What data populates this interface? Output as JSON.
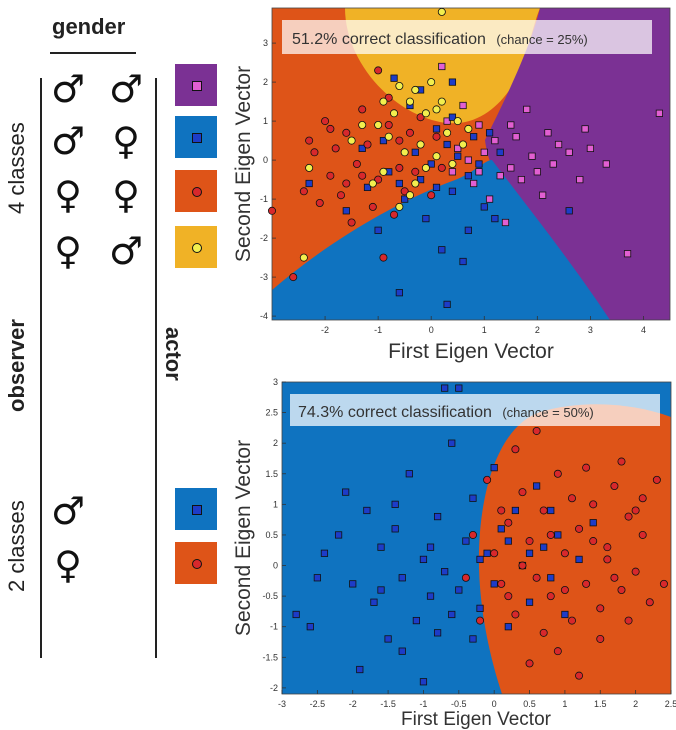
{
  "legend": {
    "gender_title": "gender",
    "four_classes_label": "4 classes",
    "two_classes_label": "2 classes",
    "observer_label": "observer",
    "actor_label": "actor",
    "four_class_rows": [
      {
        "observer": "♂",
        "actor": "♂",
        "class_color": "#7b3194",
        "marker": "square",
        "marker_color": "#e25fd2"
      },
      {
        "observer": "♂",
        "actor": "♀",
        "class_color": "#0f73c0",
        "marker": "square",
        "marker_color": "#1d3cc8"
      },
      {
        "observer": "♀",
        "actor": "♀",
        "class_color": "#de5418",
        "marker": "circle",
        "marker_color": "#d8282c"
      },
      {
        "observer": "♀",
        "actor": "♂",
        "class_color": "#f0b226",
        "marker": "circle",
        "marker_color": "#f3ef4e"
      }
    ],
    "two_class_rows": [
      {
        "observer": "♂",
        "class_color": "#0f73c0",
        "marker": "square",
        "marker_color": "#1d3cc8"
      },
      {
        "observer": "♀",
        "class_color": "#de5418",
        "marker": "circle",
        "marker_color": "#d8282c"
      }
    ]
  },
  "chart_data": [
    {
      "type": "scatter",
      "annotation_main": "51.2% correct classification",
      "annotation_sub": "(chance = 25%)",
      "xlabel": "First Eigen Vector",
      "ylabel": "Second Eigen Vector",
      "xlim": [
        -3,
        4.5
      ],
      "ylim": [
        -4.1,
        3.9
      ],
      "xticks": [
        -2,
        -1,
        0,
        1,
        2,
        3,
        4
      ],
      "yticks": [
        3,
        2,
        1,
        0,
        -1,
        -2,
        -3,
        -4
      ],
      "region_colors": {
        "purple": "#7b3194",
        "blue": "#0f73c0",
        "orange": "#de5418",
        "yellow": "#f0b226"
      },
      "series": [
        {
          "marker": "square",
          "color": "#e25fd2",
          "points": [
            [
              3.7,
              -2.4
            ],
            [
              4.3,
              1.2
            ],
            [
              2.4,
              0.4
            ],
            [
              2.8,
              -0.5
            ],
            [
              1.5,
              -0.2
            ],
            [
              1.9,
              0.1
            ],
            [
              1.2,
              0.5
            ],
            [
              2.1,
              -0.9
            ],
            [
              0.6,
              1.4
            ],
            [
              0.9,
              0.9
            ],
            [
              1.6,
              0.6
            ],
            [
              2.0,
              -0.3
            ],
            [
              1.4,
              -1.6
            ],
            [
              3.3,
              -0.1
            ],
            [
              2.6,
              0.2
            ],
            [
              0.4,
              -0.3
            ],
            [
              0.8,
              -0.6
            ],
            [
              1.1,
              -1.0
            ],
            [
              1.8,
              1.3
            ],
            [
              0.2,
              2.4
            ],
            [
              2.3,
              -0.1
            ],
            [
              1.0,
              0.2
            ],
            [
              0.5,
              0.3
            ],
            [
              1.7,
              -0.5
            ],
            [
              2.9,
              0.8
            ],
            [
              0.3,
              1.0
            ],
            [
              1.3,
              -0.4
            ],
            [
              0.7,
              0.0
            ],
            [
              2.2,
              0.7
            ],
            [
              1.5,
              0.9
            ],
            [
              0.9,
              -0.3
            ],
            [
              3.0,
              0.3
            ]
          ]
        },
        {
          "marker": "square",
          "color": "#1d3cc8",
          "points": [
            [
              -2.3,
              -0.6
            ],
            [
              -0.6,
              -3.4
            ],
            [
              0.3,
              -3.7
            ],
            [
              0.7,
              -1.8
            ],
            [
              -0.1,
              -1.5
            ],
            [
              0.4,
              -0.8
            ],
            [
              -0.8,
              -0.3
            ],
            [
              0.1,
              0.8
            ],
            [
              0.5,
              0.1
            ],
            [
              -0.2,
              -0.5
            ],
            [
              1.0,
              -1.2
            ],
            [
              -1.3,
              0.3
            ],
            [
              -0.4,
              1.4
            ],
            [
              0.8,
              0.6
            ],
            [
              -1.0,
              -1.8
            ],
            [
              0.2,
              -2.3
            ],
            [
              -0.5,
              -1.0
            ],
            [
              1.3,
              0.2
            ],
            [
              0.6,
              -2.6
            ],
            [
              -1.6,
              -1.3
            ],
            [
              -0.3,
              0.2
            ],
            [
              0.9,
              -0.1
            ],
            [
              -0.9,
              0.5
            ],
            [
              0.1,
              -0.7
            ],
            [
              1.1,
              0.7
            ],
            [
              -0.6,
              -0.6
            ],
            [
              0.4,
              1.1
            ],
            [
              -1.2,
              -0.7
            ],
            [
              0.3,
              0.4
            ],
            [
              0.0,
              -0.1
            ],
            [
              -0.2,
              1.8
            ],
            [
              0.7,
              -0.4
            ],
            [
              -0.7,
              2.1
            ],
            [
              2.6,
              -1.3
            ],
            [
              0.4,
              2.0
            ],
            [
              1.2,
              -1.5
            ]
          ]
        },
        {
          "marker": "circle",
          "color": "#d8282c",
          "points": [
            [
              -2.2,
              0.2
            ],
            [
              -1.9,
              -0.4
            ],
            [
              -1.6,
              0.7
            ],
            [
              -2.0,
              1.0
            ],
            [
              -1.4,
              -0.1
            ],
            [
              -1.2,
              0.4
            ],
            [
              -1.7,
              -0.9
            ],
            [
              -1.0,
              -0.5
            ],
            [
              -0.8,
              0.9
            ],
            [
              -1.3,
              1.3
            ],
            [
              -0.5,
              -0.8
            ],
            [
              -0.6,
              0.5
            ],
            [
              -1.8,
              0.3
            ],
            [
              -2.4,
              -0.8
            ],
            [
              -1.1,
              -1.2
            ],
            [
              -0.3,
              -0.3
            ],
            [
              0.1,
              0.6
            ],
            [
              -0.2,
              1.1
            ],
            [
              -1.5,
              -1.6
            ],
            [
              -0.9,
              -2.5
            ],
            [
              -2.6,
              -3.0
            ],
            [
              -1.0,
              2.3
            ],
            [
              -2.1,
              -1.1
            ],
            [
              0.2,
              -0.2
            ],
            [
              -0.4,
              0.7
            ],
            [
              -0.7,
              -1.4
            ],
            [
              -1.9,
              0.8
            ],
            [
              -1.3,
              -0.4
            ],
            [
              -0.6,
              -0.2
            ],
            [
              0.0,
              -0.9
            ],
            [
              -1.6,
              -0.6
            ],
            [
              -2.3,
              0.5
            ],
            [
              -3.0,
              -1.3
            ],
            [
              -0.8,
              1.6
            ]
          ]
        },
        {
          "marker": "circle",
          "color": "#f3ef4e",
          "points": [
            [
              -1.0,
              0.9
            ],
            [
              -0.7,
              1.2
            ],
            [
              -0.4,
              1.5
            ],
            [
              -0.1,
              1.2
            ],
            [
              0.2,
              1.5
            ],
            [
              0.5,
              1.0
            ],
            [
              -0.8,
              0.6
            ],
            [
              -0.5,
              0.2
            ],
            [
              -0.2,
              0.4
            ],
            [
              0.1,
              0.1
            ],
            [
              0.3,
              0.7
            ],
            [
              -1.3,
              0.9
            ],
            [
              -0.9,
              -0.3
            ],
            [
              -0.3,
              -0.6
            ],
            [
              0.0,
              2.0
            ],
            [
              0.2,
              3.8
            ],
            [
              -0.6,
              1.9
            ],
            [
              0.6,
              0.4
            ],
            [
              -1.5,
              0.5
            ],
            [
              0.4,
              -0.1
            ],
            [
              -0.1,
              -0.2
            ],
            [
              -2.4,
              -2.5
            ],
            [
              -2.3,
              -0.2
            ],
            [
              -0.4,
              -0.9
            ],
            [
              -0.6,
              -1.2
            ],
            [
              0.7,
              0.8
            ],
            [
              -1.1,
              -0.6
            ],
            [
              -0.3,
              1.8
            ],
            [
              -0.9,
              1.5
            ],
            [
              0.1,
              1.3
            ]
          ]
        }
      ]
    },
    {
      "type": "scatter",
      "annotation_main": "74.3% correct classification",
      "annotation_sub": "(chance = 50%)",
      "xlabel": "First Eigen Vector",
      "ylabel": "Second Eigen Vector",
      "xlim": [
        -3,
        2.5
      ],
      "ylim": [
        -2.1,
        3
      ],
      "xticks": [
        -3,
        -2.5,
        -2,
        -1.5,
        -1,
        -0.5,
        0,
        0.5,
        1,
        1.5,
        2,
        2.5
      ],
      "xtick_labels": [
        "-3",
        "-2.5",
        "-2",
        "-1.5",
        "-1",
        "-0.5",
        "0",
        "0.5",
        "1",
        "1.5",
        "2",
        "2.5"
      ],
      "yticks": [
        3,
        2.5,
        2,
        1.5,
        1,
        0.5,
        0,
        -0.5,
        -1,
        -1.5,
        -2
      ],
      "ytick_labels": [
        "3",
        "2.5",
        "2",
        "1.5",
        "1",
        "0.5",
        "0",
        "-0.5",
        "-1",
        "-1.5",
        "-2"
      ],
      "region_colors": {
        "blue": "#0f73c0",
        "orange": "#de5418"
      },
      "series": [
        {
          "marker": "square",
          "color": "#1d3cc8",
          "points": [
            [
              -2.8,
              -0.8
            ],
            [
              -2.6,
              -1.0
            ],
            [
              -2.4,
              0.2
            ],
            [
              -2.2,
              0.5
            ],
            [
              -2.0,
              -0.3
            ],
            [
              -1.8,
              0.9
            ],
            [
              -1.7,
              -0.6
            ],
            [
              -1.6,
              0.3
            ],
            [
              -1.5,
              -1.2
            ],
            [
              -1.4,
              0.6
            ],
            [
              -1.3,
              -0.2
            ],
            [
              -1.2,
              1.5
            ],
            [
              -1.1,
              -0.9
            ],
            [
              -1.0,
              0.1
            ],
            [
              -0.9,
              -0.5
            ],
            [
              -0.8,
              0.8
            ],
            [
              -0.7,
              -0.1
            ],
            [
              -0.6,
              2.0
            ],
            [
              -0.5,
              -0.4
            ],
            [
              -0.4,
              0.4
            ],
            [
              -0.3,
              1.1
            ],
            [
              -0.2,
              -0.7
            ],
            [
              -0.1,
              0.2
            ],
            [
              0.0,
              -0.3
            ],
            [
              0.1,
              0.6
            ],
            [
              0.2,
              -1.0
            ],
            [
              0.3,
              0.9
            ],
            [
              0.4,
              0.0
            ],
            [
              0.5,
              -0.6
            ],
            [
              0.6,
              1.3
            ],
            [
              0.7,
              0.3
            ],
            [
              0.8,
              -0.2
            ],
            [
              0.9,
              0.5
            ],
            [
              1.0,
              -0.8
            ],
            [
              1.2,
              0.1
            ],
            [
              1.4,
              0.7
            ],
            [
              -1.9,
              -1.7
            ],
            [
              -1.0,
              -1.9
            ],
            [
              -0.5,
              2.9
            ],
            [
              -0.7,
              2.9
            ],
            [
              -2.1,
              1.2
            ],
            [
              -1.3,
              -1.4
            ],
            [
              -0.3,
              -1.2
            ],
            [
              0.0,
              1.6
            ],
            [
              0.5,
              0.2
            ],
            [
              -0.9,
              0.3
            ],
            [
              -1.6,
              -0.4
            ],
            [
              -2.5,
              -0.2
            ],
            [
              -0.2,
              0.1
            ],
            [
              -0.6,
              -0.8
            ],
            [
              -1.4,
              1.0
            ],
            [
              -0.8,
              -1.1
            ],
            [
              0.2,
              0.4
            ],
            [
              0.8,
              0.9
            ]
          ]
        },
        {
          "marker": "circle",
          "color": "#d8282c",
          "points": [
            [
              0.0,
              0.2
            ],
            [
              0.1,
              -0.3
            ],
            [
              0.2,
              0.7
            ],
            [
              0.3,
              -0.8
            ],
            [
              0.4,
              1.2
            ],
            [
              0.5,
              0.4
            ],
            [
              0.6,
              -0.2
            ],
            [
              0.7,
              0.9
            ],
            [
              0.8,
              -0.5
            ],
            [
              0.9,
              1.5
            ],
            [
              1.0,
              0.2
            ],
            [
              1.1,
              -0.9
            ],
            [
              1.2,
              0.6
            ],
            [
              1.3,
              -0.3
            ],
            [
              1.4,
              1.0
            ],
            [
              1.5,
              -0.7
            ],
            [
              1.6,
              0.3
            ],
            [
              1.7,
              1.3
            ],
            [
              1.8,
              -0.4
            ],
            [
              1.9,
              0.8
            ],
            [
              2.0,
              -0.1
            ],
            [
              2.1,
              0.5
            ],
            [
              2.2,
              -0.6
            ],
            [
              2.4,
              -0.3
            ],
            [
              0.3,
              1.9
            ],
            [
              0.6,
              2.2
            ],
            [
              0.9,
              -1.4
            ],
            [
              1.2,
              -1.8
            ],
            [
              1.5,
              -1.2
            ],
            [
              0.5,
              -1.6
            ],
            [
              1.8,
              1.7
            ],
            [
              2.1,
              1.1
            ],
            [
              -0.2,
              -0.9
            ],
            [
              -0.3,
              0.5
            ],
            [
              -0.1,
              1.4
            ],
            [
              0.4,
              0.0
            ],
            [
              0.8,
              0.5
            ],
            [
              1.1,
              1.1
            ],
            [
              1.4,
              0.4
            ],
            [
              1.7,
              -0.2
            ],
            [
              2.0,
              0.9
            ],
            [
              0.2,
              -0.5
            ],
            [
              0.7,
              -1.1
            ],
            [
              1.0,
              -0.4
            ],
            [
              1.3,
              1.6
            ],
            [
              1.6,
              0.1
            ],
            [
              1.9,
              -0.9
            ],
            [
              0.1,
              0.9
            ],
            [
              -0.4,
              -0.2
            ],
            [
              2.3,
              1.4
            ]
          ]
        }
      ]
    }
  ]
}
